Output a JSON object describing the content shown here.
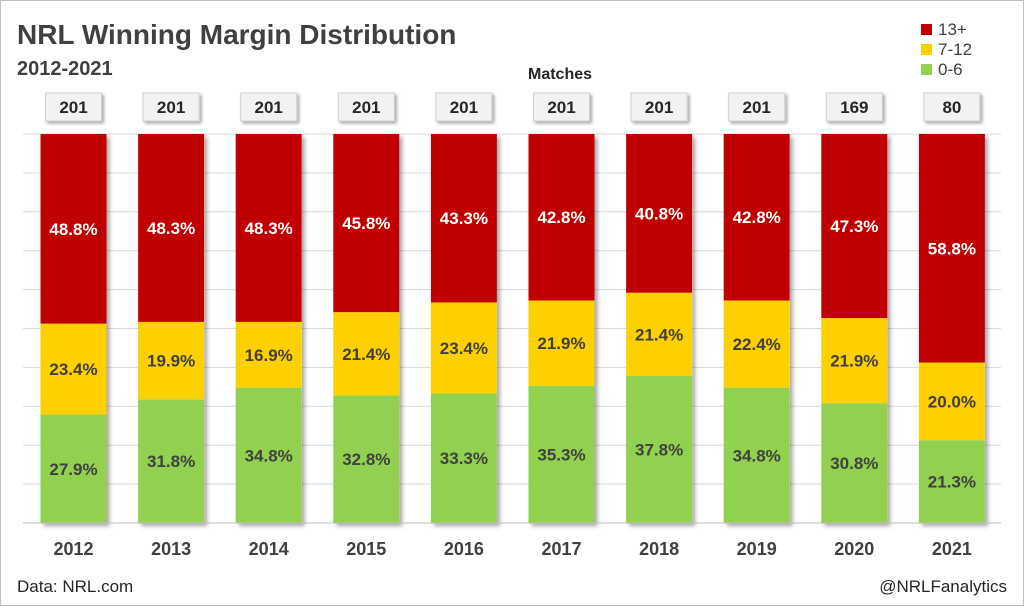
{
  "chart_data": {
    "type": "bar",
    "stacked": true,
    "title": "NRL Winning Margin Distribution",
    "subtitle": "2012-2021",
    "top_label": "Matches",
    "categories": [
      "2012",
      "2013",
      "2014",
      "2015",
      "2016",
      "2017",
      "2018",
      "2019",
      "2020",
      "2021"
    ],
    "matches": [
      "201",
      "201",
      "201",
      "201",
      "201",
      "201",
      "201",
      "201",
      "169",
      "80"
    ],
    "series": [
      {
        "name": "0-6",
        "color": "#92d050",
        "values": [
          27.9,
          31.8,
          34.8,
          32.8,
          33.3,
          35.3,
          37.8,
          34.8,
          30.8,
          21.3
        ],
        "labels": [
          "27.9%",
          "31.8%",
          "34.8%",
          "32.8%",
          "33.3%",
          "35.3%",
          "37.8%",
          "34.8%",
          "30.8%",
          "21.3%"
        ]
      },
      {
        "name": "7-12",
        "color": "#ffd000",
        "values": [
          23.4,
          19.9,
          16.9,
          21.4,
          23.4,
          21.9,
          21.4,
          22.4,
          21.9,
          20.0
        ],
        "labels": [
          "23.4%",
          "19.9%",
          "16.9%",
          "21.4%",
          "23.4%",
          "21.9%",
          "21.4%",
          "22.4%",
          "21.9%",
          "20.0%"
        ]
      },
      {
        "name": "13+",
        "color": "#c00000",
        "values": [
          48.8,
          48.3,
          48.3,
          45.8,
          43.3,
          42.8,
          40.8,
          42.8,
          47.3,
          58.8
        ],
        "labels": [
          "48.8%",
          "48.3%",
          "48.3%",
          "45.8%",
          "43.3%",
          "42.8%",
          "40.8%",
          "42.8%",
          "47.3%",
          "58.8%"
        ]
      }
    ],
    "legend_order": [
      "13+",
      "7-12",
      "0-6"
    ],
    "legend_position": "top-right",
    "ylim": [
      0,
      100
    ],
    "grid": true
  },
  "footer": {
    "source": "Data: NRL.com",
    "credit": "@NRLFanalytics"
  }
}
